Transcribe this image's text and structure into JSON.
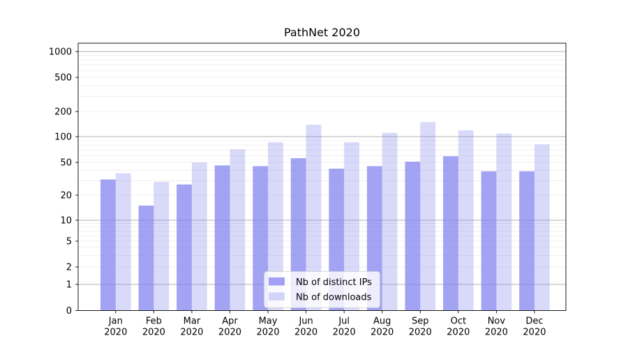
{
  "figure": {
    "background": "#ffffff"
  },
  "chart_data": {
    "type": "bar",
    "title": "PathNet 2020",
    "categories": [
      "Jan",
      "Feb",
      "Mar",
      "Apr",
      "May",
      "Jun",
      "Jul",
      "Aug",
      "Sep",
      "Oct",
      "Nov",
      "Dec"
    ],
    "category_year": "2020",
    "series": [
      {
        "name": "Nb of distinct IPs",
        "color": "#8080f0",
        "fill_opacity": 0.72,
        "values": [
          31,
          15,
          27,
          46,
          45,
          56,
          42,
          45,
          51,
          59,
          39,
          39
        ]
      },
      {
        "name": "Nb of downloads",
        "color": "#8080f0",
        "fill_opacity": 0.3,
        "values": [
          37,
          29,
          50,
          71,
          86,
          139,
          86,
          111,
          149,
          119,
          109,
          81
        ]
      }
    ],
    "xlabel": "",
    "ylabel": "",
    "y_scale": "symlog",
    "y_ticks": [
      0,
      1,
      2,
      5,
      10,
      20,
      50,
      100,
      200,
      500,
      1000
    ],
    "ylim": [
      0,
      1250
    ],
    "grid": true,
    "legend_position": "lower center"
  },
  "colors": {
    "bar_base": "#8080f0",
    "grid_major": "#b0b0b0",
    "grid_minor": "#ebebeb",
    "axis": "#000000",
    "legend_border": "#cccccc",
    "legend_bg": "#ffffff"
  }
}
